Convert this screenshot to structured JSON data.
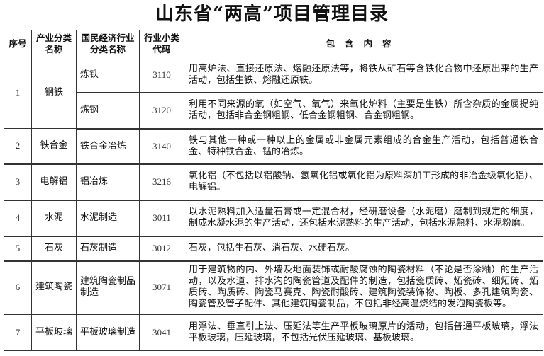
{
  "title": "山东省“两高”项目管理目录",
  "headers": [
    "序号",
    "产业分类名称",
    "国民经济行业分类名称",
    "行业小类代码",
    "包含内容"
  ],
  "rows": [
    {
      "no": "1",
      "industry": "钢铁",
      "sub": [
        {
          "name": "炼铁",
          "code": "3110",
          "content": "用高炉法、直接还原法、熔融还原法等，将铁从矿石等含铁化合物中还原出来的生产活动，包括生铁、熔融还原铁。"
        },
        {
          "name": "炼钢",
          "code": "3120",
          "content": "利用不同来源的氧（如空气、氧气）来氧化炉料（主要是生铁）所含杂质的金属提纯活动，包括非合金钢粗钢、低合金钢粗钢、合金钢粗钢。"
        }
      ]
    },
    {
      "no": "2",
      "industry": "铁合金",
      "name": "铁合金冶炼",
      "code": "3140",
      "content": "铁与其他一种或一种以上的金属或非金属元素组成的合金生产活动，包括普通铁合金、特种铁合金、锰的冶炼。"
    },
    {
      "no": "3",
      "industry": "电解铝",
      "name": "铝冶炼",
      "code": "3216",
      "content": "氧化铝（不包括以铝酸钠、氢氧化铝或氧化铝为原料深加工形成的非冶金级氧化铝）、电解铝。"
    },
    {
      "no": "4",
      "industry": "水泥",
      "name": "水泥制造",
      "code": "3011",
      "content": "以水泥熟料加入适量石膏或一定混合材，经研磨设备（水泥磨）磨制到规定的细度，制成水凝水泥的生产活动，还包括水泥熟料的生产活动，包括水泥熟料、水泥粉磨。"
    },
    {
      "no": "5",
      "industry": "石灰",
      "name": "石灰制造",
      "code": "3012",
      "content": "石灰，包括生石灰、消石灰、水硬石灰。"
    },
    {
      "no": "6",
      "industry": "建筑陶瓷",
      "name": "建筑陶瓷制品制造",
      "code": "3071",
      "content": "用于建筑物的内、外墙及地面装饰或耐酸腐蚀的陶瓷材料（不论是否涂釉）的生产活动，以及水道、排水沟的陶瓷管道及配件的制造，包括瓷质砖、炻瓷砖、细炻砖、炻质砖、陶质砖、陶瓷马赛克、陶瓷耐酸砖、建筑陶瓷装饰物、陶板、多孔建筑陶瓷、陶瓷管及管子配件、其他建筑陶瓷制品，不包括非经高温烧结的发泡陶瓷板等。"
    },
    {
      "no": "7",
      "industry": "平板玻璃",
      "name": "平板玻璃制造",
      "code": "3041",
      "content": "用浮法、垂直引上法、压延法等生产平板玻璃原片的活动，包括普通平板玻璃，浮法平板玻璃，压延玻璃，不包括光伏压延玻璃、基板玻璃。"
    }
  ]
}
